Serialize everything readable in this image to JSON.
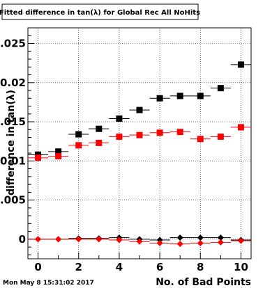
{
  "title": "Fitted difference in tan(λ) for Global Rec All NoHits",
  "footer_date": "Mon May  8 15:31:02 2017",
  "colors": {
    "black_series": "#000000",
    "red_series": "#ff0000",
    "background": "#ffffff"
  },
  "chart_data": {
    "type": "scatter",
    "xlabel": "No. of Bad Points",
    "ylabel": "difference in tan(λ)",
    "xlim": [
      -0.5,
      10.5
    ],
    "ylim": [
      -0.0025,
      0.027
    ],
    "x_ticks": [
      0,
      2,
      4,
      6,
      8,
      10
    ],
    "y_ticks": [
      0,
      0.005,
      0.01,
      0.015,
      0.02,
      0.025
    ],
    "y_tick_labels": [
      "0",
      "0.005",
      "0.01",
      "0.015",
      "0.02",
      "0.025"
    ],
    "grid": true,
    "legend": "none",
    "series": [
      {
        "marker": "square",
        "color": "#000000",
        "x": [
          0,
          1,
          2,
          3,
          4,
          5,
          6,
          7,
          8,
          9,
          10
        ],
        "y": [
          0.0108,
          0.0112,
          0.0134,
          0.0141,
          0.0154,
          0.0165,
          0.018,
          0.0183,
          0.0183,
          0.0193,
          0.0223
        ]
      },
      {
        "marker": "square",
        "color": "#ff0000",
        "x": [
          0,
          1,
          2,
          3,
          4,
          5,
          6,
          7,
          8,
          9,
          10
        ],
        "y": [
          0.0104,
          0.0106,
          0.012,
          0.0123,
          0.0131,
          0.0133,
          0.0136,
          0.0137,
          0.0128,
          0.0131,
          0.0143
        ]
      },
      {
        "marker": "diamond",
        "color": "#000000",
        "x": [
          0,
          1,
          2,
          3,
          4,
          5,
          6,
          7,
          8,
          9,
          10
        ],
        "y": [
          0.0,
          0.0,
          0.0001,
          0.0001,
          0.0002,
          0.0,
          -0.0001,
          0.0002,
          0.0002,
          0.0002,
          -0.0001
        ]
      },
      {
        "marker": "diamond",
        "color": "#ff0000",
        "x": [
          0,
          1,
          2,
          3,
          4,
          5,
          6,
          7,
          8,
          9,
          10
        ],
        "y": [
          0.0,
          0.0,
          0.0,
          0.0,
          -0.0001,
          -0.0003,
          -0.0005,
          -0.0006,
          -0.0005,
          -0.0004,
          -0.0002
        ]
      }
    ]
  }
}
